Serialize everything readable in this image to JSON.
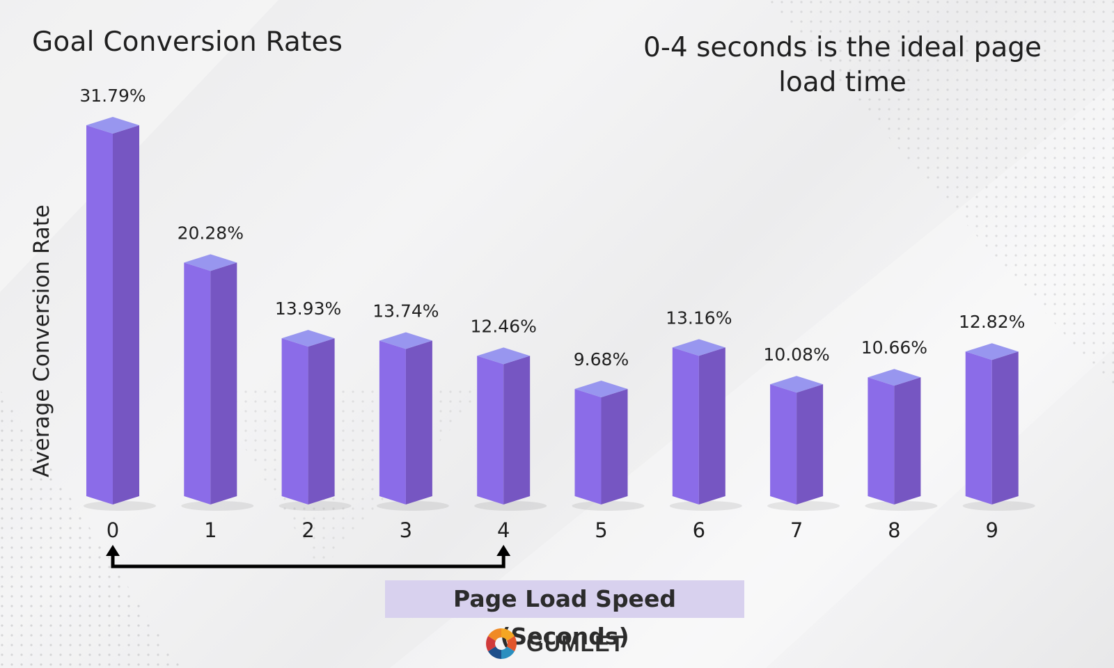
{
  "title": "Goal Conversion Rates",
  "note": "0-4 seconds is the ideal page load time",
  "brand": {
    "name": "GUMLET",
    "icon": "gumlet-logo-icon"
  },
  "colors": {
    "bar_front": "#8b6ce8",
    "bar_side": "#7656c2",
    "bar_top": "#9896ef",
    "label_bg": "#d8d1ee",
    "arrow": "#000000",
    "text": "#1f1f1f"
  },
  "chart_data": {
    "type": "bar",
    "categories": [
      "0",
      "1",
      "2",
      "3",
      "4",
      "5",
      "6",
      "7",
      "8",
      "9"
    ],
    "values": [
      31.79,
      20.28,
      13.93,
      13.74,
      12.46,
      9.68,
      13.16,
      10.08,
      10.66,
      12.82
    ],
    "data_labels": [
      "31.79%",
      "20.28%",
      "13.93%",
      "13.74%",
      "12.46%",
      "9.68%",
      "13.16%",
      "10.08%",
      "10.66%",
      "12.82%"
    ],
    "xlabel": "Page Load Speed (Seconds)",
    "ylabel": "Average Conversion Rate",
    "ylim": [
      0,
      35
    ],
    "grid": false,
    "style": "3d-bar",
    "bracket": {
      "from": "0",
      "to": "4"
    }
  }
}
